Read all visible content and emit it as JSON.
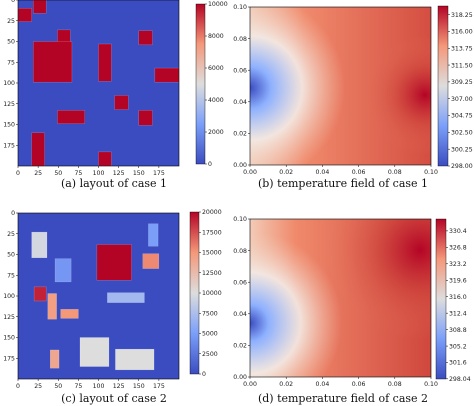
{
  "figure": {
    "captions": {
      "a": "(a) layout of case 1",
      "b": "(b) temperature field of case 1",
      "c": "(c) layout of case 2",
      "d": "(d) temperature field of case 2"
    }
  },
  "chart_data": [
    {
      "id": "a",
      "type": "heatmap",
      "title": "",
      "xlabel": "",
      "ylabel": "",
      "x_ticks": [
        "0",
        "25",
        "50",
        "75",
        "100",
        "125",
        "150",
        "175"
      ],
      "y_ticks": [
        "0",
        "25",
        "50",
        "75",
        "100",
        "125",
        "150",
        "175"
      ],
      "xlim": [
        0,
        200
      ],
      "ylim": [
        200,
        0
      ],
      "colorbar": {
        "min": 0,
        "max": 10000,
        "ticks": [
          "0",
          "2000",
          "4000",
          "6000",
          "8000",
          "10000"
        ]
      },
      "background_value": 0,
      "grid": false,
      "components": [
        {
          "x": 19,
          "y": 0,
          "w": 16,
          "h": 16,
          "value": 10000
        },
        {
          "x": 0,
          "y": 10,
          "w": 17,
          "h": 16,
          "value": 10000
        },
        {
          "x": 49,
          "y": 36,
          "w": 16,
          "h": 16,
          "value": 10000
        },
        {
          "x": 150,
          "y": 37,
          "w": 17,
          "h": 17,
          "value": 10000
        },
        {
          "x": 19,
          "y": 50,
          "w": 48,
          "h": 49,
          "value": 10000
        },
        {
          "x": 100,
          "y": 53,
          "w": 16,
          "h": 45,
          "value": 10000
        },
        {
          "x": 170,
          "y": 82,
          "w": 30,
          "h": 17,
          "value": 10000
        },
        {
          "x": 120,
          "y": 115,
          "w": 17,
          "h": 17,
          "value": 10000
        },
        {
          "x": 49,
          "y": 133,
          "w": 34,
          "h": 16,
          "value": 10000
        },
        {
          "x": 150,
          "y": 133,
          "w": 17,
          "h": 18,
          "value": 10000
        },
        {
          "x": 17,
          "y": 160,
          "w": 16,
          "h": 40,
          "value": 10000
        },
        {
          "x": 100,
          "y": 183,
          "w": 16,
          "h": 17,
          "value": 10000
        }
      ]
    },
    {
      "id": "b",
      "type": "heatmap",
      "title": "",
      "xlabel": "",
      "ylabel": "",
      "x_ticks": [
        "0.00",
        "0.02",
        "0.04",
        "0.06",
        "0.08",
        "0.10"
      ],
      "y_ticks": [
        "0.00",
        "0.02",
        "0.04",
        "0.06",
        "0.08",
        "0.10"
      ],
      "xlim": [
        0,
        0.1
      ],
      "ylim": [
        0,
        0.1
      ],
      "colorbar": {
        "min": 298.0,
        "max": 319.4,
        "ticks": [
          "298.00",
          "300.25",
          "302.50",
          "304.75",
          "307.00",
          "309.25",
          "311.50",
          "313.75",
          "316.00",
          "318.25"
        ]
      },
      "cold_spot": {
        "x": 0.0,
        "y": 0.05,
        "value": 298.0
      },
      "hot_spot": {
        "x": 0.095,
        "y": 0.048,
        "value": 319.0
      },
      "grid": false
    },
    {
      "id": "c",
      "type": "heatmap",
      "title": "",
      "xlabel": "",
      "ylabel": "",
      "x_ticks": [
        "0",
        "25",
        "50",
        "75",
        "100",
        "125",
        "150",
        "175"
      ],
      "y_ticks": [
        "0",
        "25",
        "50",
        "75",
        "100",
        "125",
        "150",
        "175"
      ],
      "xlim": [
        0,
        200
      ],
      "ylim": [
        200,
        0
      ],
      "colorbar": {
        "min": 0,
        "max": 20000,
        "ticks": [
          "0",
          "2500",
          "5000",
          "7500",
          "10000",
          "12500",
          "15000",
          "17500",
          "20000"
        ]
      },
      "background_value": 0,
      "grid": false,
      "components": [
        {
          "x": 17,
          "y": 23,
          "w": 19,
          "h": 31,
          "value": 9500
        },
        {
          "x": 162,
          "y": 13,
          "w": 12,
          "h": 27,
          "value": 5000
        },
        {
          "x": 46,
          "y": 55,
          "w": 20,
          "h": 28,
          "value": 4500
        },
        {
          "x": 98,
          "y": 38,
          "w": 43,
          "h": 43,
          "value": 20000
        },
        {
          "x": 155,
          "y": 49,
          "w": 20,
          "h": 18,
          "value": 15500
        },
        {
          "x": 20,
          "y": 89,
          "w": 15,
          "h": 17,
          "value": 19000
        },
        {
          "x": 37,
          "y": 97,
          "w": 11,
          "h": 31,
          "value": 14500
        },
        {
          "x": 53,
          "y": 116,
          "w": 22,
          "h": 11,
          "value": 15000
        },
        {
          "x": 111,
          "y": 96,
          "w": 46,
          "h": 12,
          "value": 7000
        },
        {
          "x": 40,
          "y": 165,
          "w": 11,
          "h": 22,
          "value": 14000
        },
        {
          "x": 77,
          "y": 150,
          "w": 36,
          "h": 35,
          "value": 10000
        },
        {
          "x": 121,
          "y": 164,
          "w": 48,
          "h": 25,
          "value": 10000
        }
      ]
    },
    {
      "id": "d",
      "type": "heatmap",
      "title": "",
      "xlabel": "",
      "ylabel": "",
      "x_ticks": [
        "0.00",
        "0.02",
        "0.04",
        "0.06",
        "0.08",
        "0.10"
      ],
      "y_ticks": [
        "0.00",
        "0.02",
        "0.04",
        "0.06",
        "0.08",
        "0.10"
      ],
      "xlim": [
        0,
        0.1
      ],
      "ylim": [
        0,
        0.1
      ],
      "colorbar": {
        "min": 298.0,
        "max": 333.0,
        "ticks": [
          "298.04",
          "301.6",
          "305.2",
          "308.8",
          "312.4",
          "316.0",
          "319.6",
          "323.2",
          "326.8",
          "330.4"
        ]
      },
      "cold_spot": {
        "x": 0.0,
        "y": 0.05,
        "value": 298.0
      },
      "hot_spot": {
        "x": 0.092,
        "y": 0.083,
        "value": 332.0
      },
      "grid": false
    }
  ]
}
